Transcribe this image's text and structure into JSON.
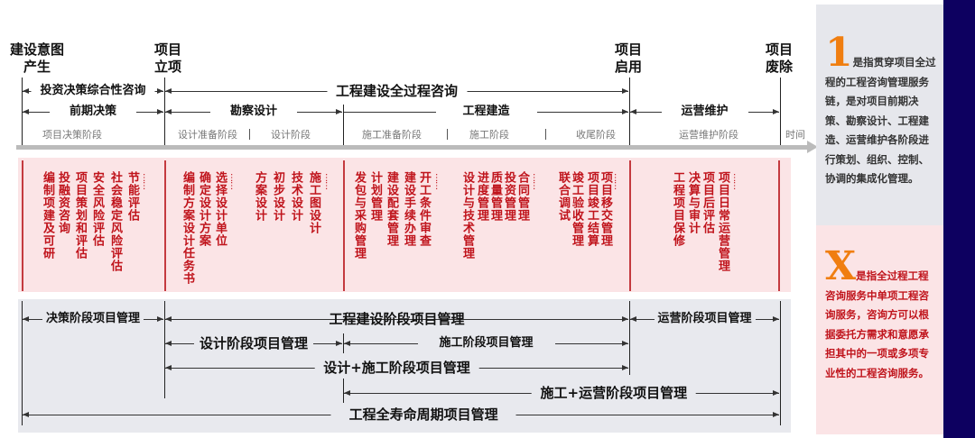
{
  "milestones": [
    "建设意图产生",
    "项目立项",
    "项目启用",
    "项目废除"
  ],
  "consult_row": {
    "investment": "投资决策综合性咨询",
    "whole_process": "工程建设全过程咨询"
  },
  "stage_row": [
    "前期决策",
    "勘察设计",
    "工程建造",
    "运营维护"
  ],
  "phases": [
    "项目决策阶段",
    "设计准备阶段",
    "设计阶段",
    "施工准备阶段",
    "施工阶段",
    "收尾阶段",
    "运营维护阶段"
  ],
  "time_label": "时间",
  "tasks": {
    "decision": [
      "编制项建及可研",
      "投融资咨询",
      "项目策划和评估",
      "安全风险评估",
      "社会稳定风险评估",
      "节能评估"
    ],
    "design": [
      "编制方案设计任务书",
      "确定设计方案",
      "选择设计单位",
      "方案设计",
      "初步设计",
      "技术设计",
      "施工图设计"
    ],
    "construction": [
      "发包与采购管理",
      "计划管理",
      "建设配套管理",
      "建设手续办理",
      "开工条件审查",
      "设计与技术管理",
      "进度管理",
      "质量管理",
      "投资管理",
      "合同管理",
      "联合调试",
      "竣工验收管理",
      "项目竣工结算",
      "项目移交管理"
    ],
    "operation": [
      "工程项目保修",
      "决算与审计",
      "项目后评估",
      "项目日常运营管理"
    ],
    "ellipsis": "……"
  },
  "management": {
    "decision": "决策阶段项目管理",
    "construction_stage": "工程建设阶段项目管理",
    "operation": "运营阶段项目管理",
    "design": "设计阶段项目管理",
    "build": "施工阶段项目管理",
    "design_build": "设计+施工阶段项目管理",
    "build_operate": "施工+运营阶段项目管理",
    "lifecycle": "工程全寿命周期项目管理"
  },
  "side": {
    "one_letter": "1",
    "one_text": "是指贯穿项目全过程的工程咨询管理服务链，是对项目前期决策、勘察设计、工程建造、运营维护各阶段进行策划、组织、控制、协调的集成化管理。",
    "x_letter": "X",
    "x_text": "是指全过程工程咨询服务中单项工程咨询服务，咨询方可以根据委托方需求和意愿承担其中的一项或多项专业性的工程咨询服务。"
  },
  "colors": {
    "accent_orange": "#f07e10",
    "task_red": "#c0141c",
    "navy": "#0d0060",
    "pink_bg": "#fbe4e6",
    "gray_bg": "#e8e9ee"
  }
}
